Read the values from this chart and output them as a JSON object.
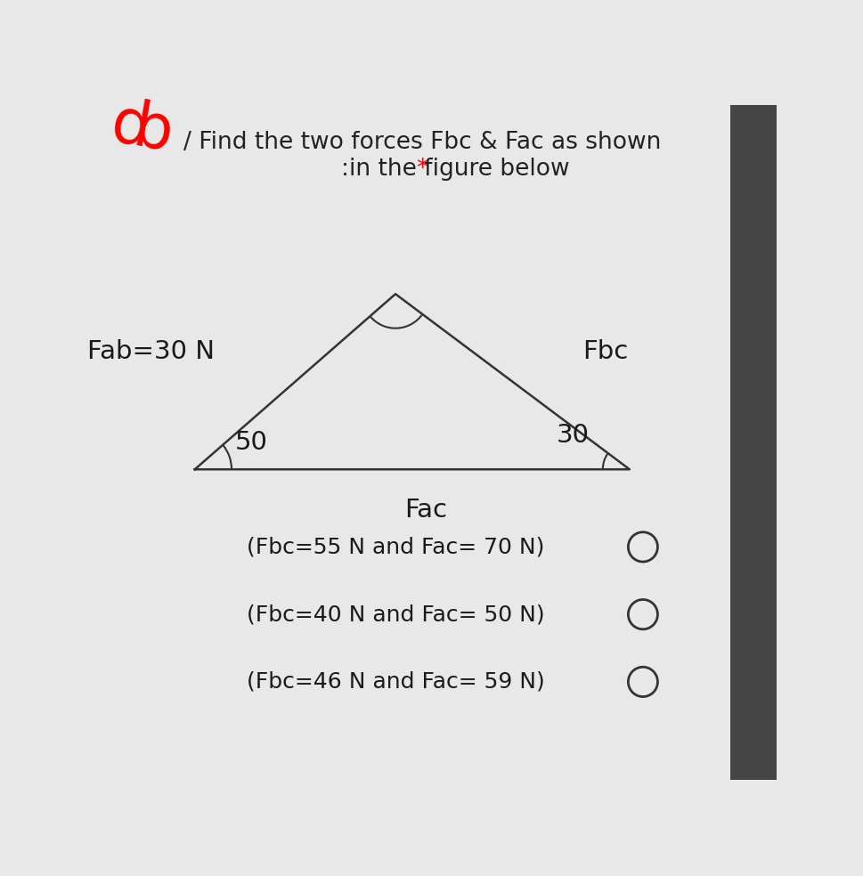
{
  "bg_color": "#e8e8e8",
  "title_line1": "/ Find the two forces Fbc & Fac as shown",
  "title_line2": ":in the figure below",
  "title_star": "*",
  "title_fontsize": 19,
  "triangle": {
    "A": [
      0.13,
      0.46
    ],
    "B": [
      0.43,
      0.72
    ],
    "C": [
      0.78,
      0.46
    ]
  },
  "label_Fab": "Fab=30 N",
  "label_Fbc": "Fbc",
  "label_Fac": "Fac",
  "label_angle_A": "50",
  "label_angle_C": "30",
  "options": [
    "(Fbc=55 N and Fac= 70 N)",
    "(Fbc=40 N and Fac= 50 N)",
    "(Fbc=46 N and Fac= 59 N)"
  ],
  "option_fontsize": 18,
  "label_fontsize": 21,
  "right_edge_color": "#555555",
  "right_edge_width": 40
}
